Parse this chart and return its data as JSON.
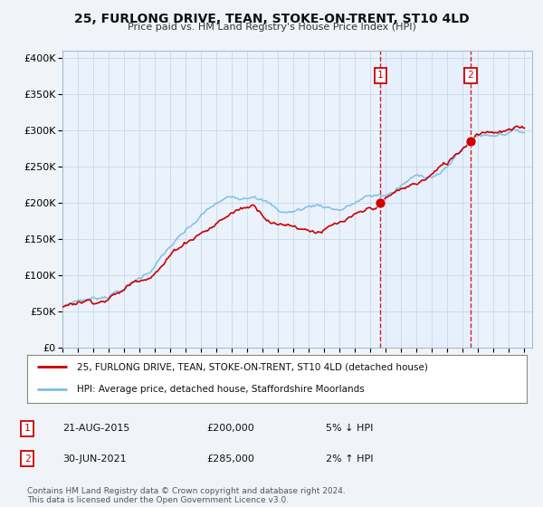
{
  "title": "25, FURLONG DRIVE, TEAN, STOKE-ON-TRENT, ST10 4LD",
  "subtitle": "Price paid vs. HM Land Registry's House Price Index (HPI)",
  "ylim": [
    0,
    410000
  ],
  "yticks": [
    0,
    50000,
    100000,
    150000,
    200000,
    250000,
    300000,
    350000,
    400000
  ],
  "ytick_labels": [
    "£0",
    "£50K",
    "£100K",
    "£150K",
    "£200K",
    "£250K",
    "£300K",
    "£350K",
    "£400K"
  ],
  "start_year": 1995,
  "end_year": 2025,
  "hpi_color": "#7bbde8",
  "price_color": "#cc0000",
  "shade_color": "#ddeeff",
  "sale1_year": 2015.64,
  "sale1_price": 200000,
  "sale1_label": "1",
  "sale1_date": "21-AUG-2015",
  "sale1_note": "5% ↓ HPI",
  "sale2_year": 2021.5,
  "sale2_price": 285000,
  "sale2_label": "2",
  "sale2_date": "30-JUN-2021",
  "sale2_note": "2% ↑ HPI",
  "legend_line1": "25, FURLONG DRIVE, TEAN, STOKE-ON-TRENT, ST10 4LD (detached house)",
  "legend_line2": "HPI: Average price, detached house, Staffordshire Moorlands",
  "footnote": "Contains HM Land Registry data © Crown copyright and database right 2024.\nThis data is licensed under the Open Government Licence v3.0.",
  "background_color": "#f0f4f8",
  "plot_bg_color": "#eaf2fb"
}
